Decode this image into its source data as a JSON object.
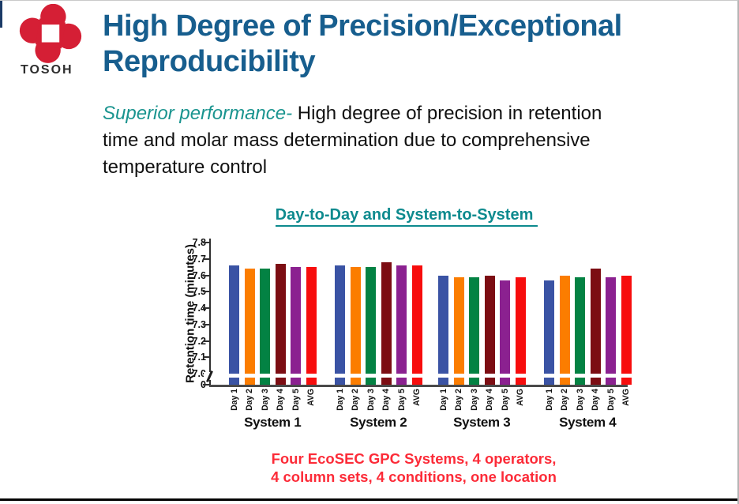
{
  "logo": {
    "brand": "TOSOH",
    "mark_color": "#d51f35"
  },
  "heading": {
    "line1": "High Degree of Precision/Exceptional",
    "line2": "Reproducibility",
    "color": "#175e8e"
  },
  "intro": {
    "highlight": "Superior performance-",
    "rest": " High degree of precision in retention time and molar mass determination due to comprehensive temperature control"
  },
  "caption": {
    "line1": "Four EcoSEC GPC Systems, 4 operators,",
    "line2": "4 column sets, 4 conditions, one location",
    "color": "#fc2b38"
  },
  "chart_data": {
    "type": "bar",
    "title": "Day-to-Day and System-to-System",
    "ylabel": "Retention time (minutes)",
    "xlabel": "",
    "ylim_main": [
      7.0,
      7.8
    ],
    "axis_break_to_zero": true,
    "y_ticks": [
      "7.8",
      "7.7",
      "7.6",
      "7.5",
      "7.4",
      "7.3",
      "7.2",
      "7.1",
      "7.0",
      "0"
    ],
    "categories": [
      "Day 1",
      "Day 2",
      "Day 3",
      "Day 4",
      "Day 5",
      "AVG"
    ],
    "bar_colors": [
      "#3a53a4",
      "#fb7d00",
      "#038243",
      "#7c0d13",
      "#8b2190",
      "#f70d0d"
    ],
    "groups": [
      {
        "label": "System 1",
        "values": [
          7.66,
          7.64,
          7.64,
          7.67,
          7.65,
          7.65
        ]
      },
      {
        "label": "System 2",
        "values": [
          7.66,
          7.65,
          7.65,
          7.68,
          7.66,
          7.66
        ]
      },
      {
        "label": "System 3",
        "values": [
          7.6,
          7.59,
          7.59,
          7.6,
          7.57,
          7.59
        ]
      },
      {
        "label": "System 4",
        "values": [
          7.57,
          7.6,
          7.59,
          7.64,
          7.59,
          7.6
        ]
      }
    ],
    "grid": false,
    "legend": "none"
  }
}
